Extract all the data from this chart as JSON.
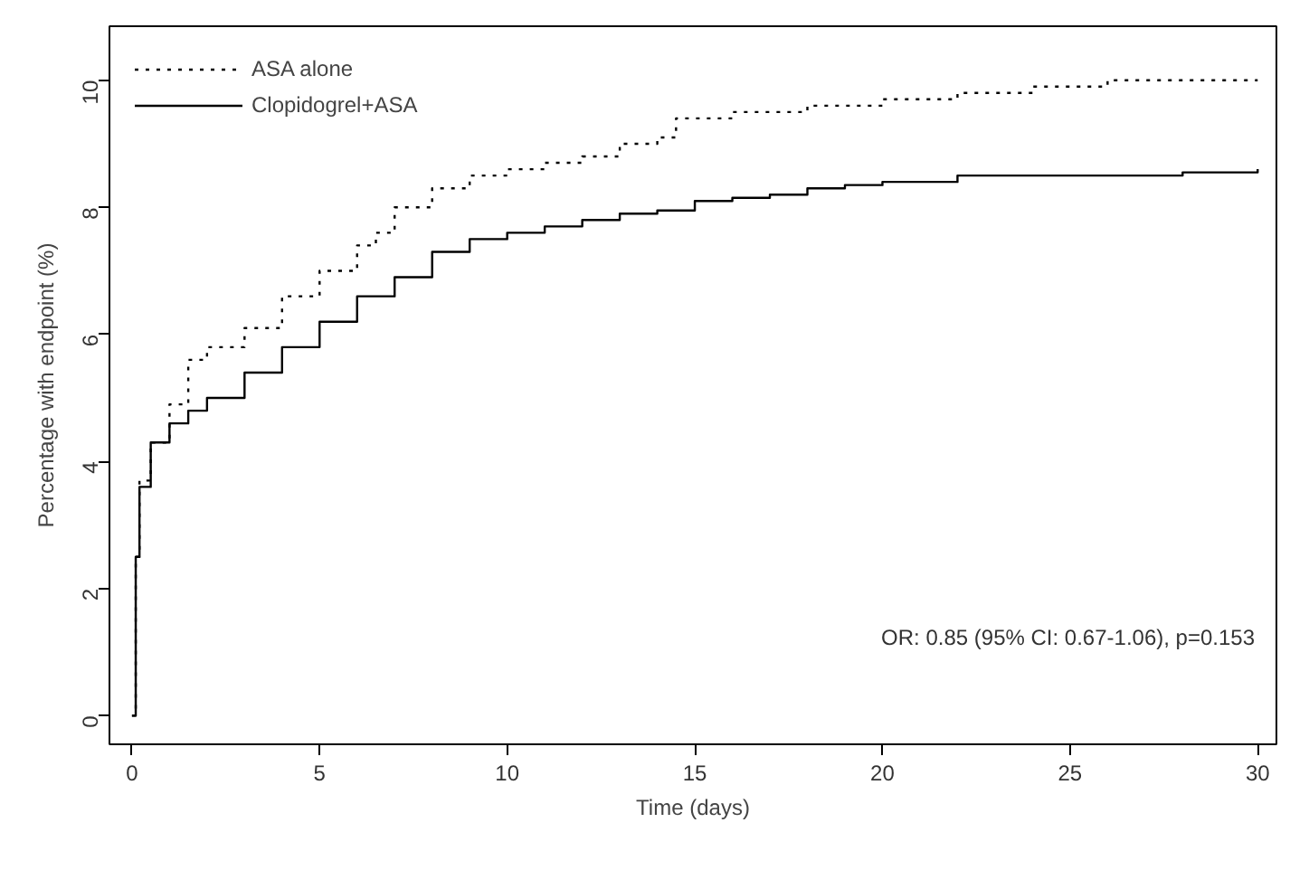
{
  "chart_data": {
    "type": "step",
    "xlabel": "Time (days)",
    "ylabel": "Percentage with endpoint (%)",
    "xlim": [
      -0.6,
      30.5
    ],
    "ylim": [
      -0.45,
      10.85
    ],
    "xticks": [
      0,
      5,
      10,
      15,
      20,
      25,
      30
    ],
    "yticks": [
      0,
      2,
      4,
      6,
      8,
      10
    ],
    "grid": false,
    "legend": "top left",
    "annotations": [
      "OR: 0.85 (95% CI: 0.67-1.06), p=0.153"
    ],
    "series": [
      {
        "name": "ASA alone",
        "color": "#000000",
        "line_style": "dotted",
        "x": [
          0,
          0.1,
          0.2,
          0.5,
          1,
          1.5,
          2,
          3,
          4,
          5,
          6,
          6.5,
          7,
          8,
          9,
          10,
          11,
          12,
          13,
          14,
          14.5,
          15,
          16,
          18,
          20,
          22,
          24,
          26,
          28,
          30
        ],
        "values": [
          0,
          2.5,
          3.7,
          4.3,
          4.9,
          5.6,
          5.8,
          6.1,
          6.6,
          7.0,
          7.4,
          7.6,
          8.0,
          8.3,
          8.5,
          8.6,
          8.7,
          8.8,
          9.0,
          9.1,
          9.4,
          9.4,
          9.5,
          9.6,
          9.7,
          9.8,
          9.9,
          10.0,
          10.0,
          10.0
        ]
      },
      {
        "name": "Clopidogrel+ASA",
        "color": "#000000",
        "line_style": "solid",
        "x": [
          0,
          0.1,
          0.2,
          0.5,
          1,
          1.5,
          2,
          3,
          4,
          5,
          6,
          7,
          8,
          9,
          10,
          11,
          12,
          13,
          14,
          15,
          16,
          17,
          18,
          19,
          20,
          22,
          25,
          28,
          30
        ],
        "values": [
          0,
          2.5,
          3.6,
          4.3,
          4.6,
          4.8,
          5.0,
          5.4,
          5.8,
          6.2,
          6.6,
          6.9,
          7.3,
          7.5,
          7.6,
          7.7,
          7.8,
          7.9,
          7.95,
          8.1,
          8.15,
          8.2,
          8.3,
          8.35,
          8.4,
          8.5,
          8.5,
          8.55,
          8.6
        ]
      }
    ]
  }
}
